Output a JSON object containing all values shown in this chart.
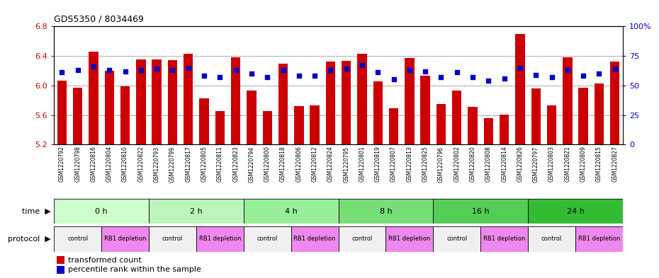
{
  "title": "GDS5350 / 8034469",
  "samples": [
    "GSM1220792",
    "GSM1220798",
    "GSM1220816",
    "GSM1220804",
    "GSM1220810",
    "GSM1220822",
    "GSM1220793",
    "GSM1220799",
    "GSM1220817",
    "GSM1220805",
    "GSM1220811",
    "GSM1220823",
    "GSM1220794",
    "GSM1220800",
    "GSM1220818",
    "GSM1220806",
    "GSM1220812",
    "GSM1220824",
    "GSM1220795",
    "GSM1220801",
    "GSM1220819",
    "GSM1220807",
    "GSM1220813",
    "GSM1220825",
    "GSM1220796",
    "GSM1220802",
    "GSM1220820",
    "GSM1220808",
    "GSM1220814",
    "GSM1220826",
    "GSM1220797",
    "GSM1220803",
    "GSM1220821",
    "GSM1220809",
    "GSM1220815",
    "GSM1220827"
  ],
  "bar_values": [
    6.07,
    5.97,
    6.46,
    6.2,
    5.99,
    6.35,
    6.35,
    6.34,
    6.43,
    5.83,
    5.65,
    6.38,
    5.93,
    5.65,
    6.3,
    5.72,
    5.73,
    6.32,
    6.33,
    6.43,
    6.06,
    5.69,
    6.37,
    6.13,
    5.75,
    5.93,
    5.71,
    5.56,
    5.61,
    6.7,
    5.96,
    5.73,
    6.38,
    5.97,
    6.03,
    6.32
  ],
  "percentile_values": [
    61,
    63,
    66,
    63,
    62,
    63,
    64,
    63,
    65,
    58,
    57,
    63,
    60,
    57,
    63,
    58,
    58,
    63,
    64,
    67,
    61,
    55,
    63,
    62,
    57,
    61,
    57,
    54,
    56,
    65,
    59,
    57,
    63,
    58,
    60,
    64
  ],
  "ylim_left": [
    5.2,
    6.8
  ],
  "ylim_right": [
    0,
    100
  ],
  "yticks_left": [
    5.2,
    5.6,
    6.0,
    6.4,
    6.8
  ],
  "yticks_right": [
    0,
    25,
    50,
    75,
    100
  ],
  "ytick_right_labels": [
    "0",
    "25",
    "50",
    "75",
    "100%"
  ],
  "bar_color": "#cc0000",
  "dot_color": "#0000cc",
  "bg_color": "#ffffff",
  "xtick_bg_color": "#cccccc",
  "time_colors": [
    "#ccffcc",
    "#bbf5bb",
    "#99ee99",
    "#77dd77",
    "#55cc55",
    "#33bb33"
  ],
  "protocol_control_color": "#f0f0f0",
  "protocol_rb1_color": "#ee88ee",
  "left_label_color": "#cc0000",
  "right_label_color": "#0000cc"
}
